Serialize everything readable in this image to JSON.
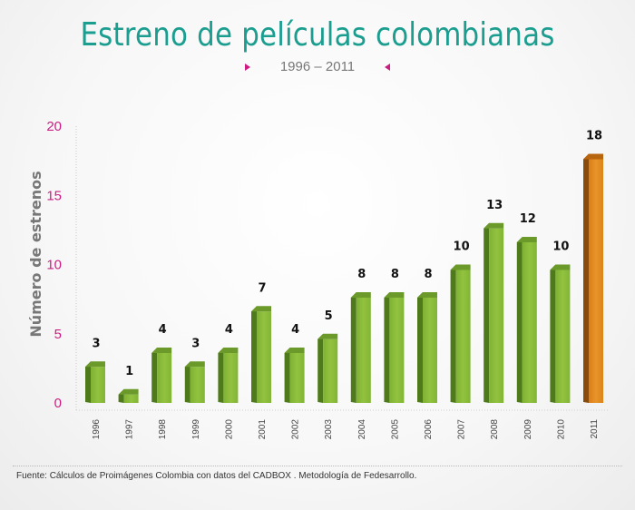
{
  "title": "Estreno de películas colombianas",
  "subtitle": "1996 – 2011",
  "source": "Fuente: Cálculos de Proimágenes Colombia con datos del CADBOX . Metodología de Fedesarrollo.",
  "colors": {
    "title": "#1b9e90",
    "accent_arrows": "#cc1c82",
    "y_tick_labels": "#cc1c82",
    "bar_green": "#8cbb3a",
    "bar_highlight": "#e08a1e",
    "axis_label": "#777777"
  },
  "chart_data": {
    "type": "bar",
    "title": "Estreno de películas colombianas",
    "subtitle": "1996 – 2011",
    "ylabel": "Número de estrenos",
    "xlabel": "",
    "categories": [
      "1996",
      "1997",
      "1998",
      "1999",
      "2000",
      "2001",
      "2002",
      "2003",
      "2004",
      "2005",
      "2006",
      "2007",
      "2008",
      "2009",
      "2010",
      "2011"
    ],
    "values": [
      3,
      1,
      4,
      3,
      4,
      7,
      4,
      5,
      8,
      8,
      8,
      10,
      13,
      12,
      10,
      18
    ],
    "highlight_category": "2011",
    "ylim": [
      0,
      20
    ],
    "yticks": [
      0,
      5,
      10,
      15,
      20
    ],
    "grid": false,
    "data_labels": true
  }
}
